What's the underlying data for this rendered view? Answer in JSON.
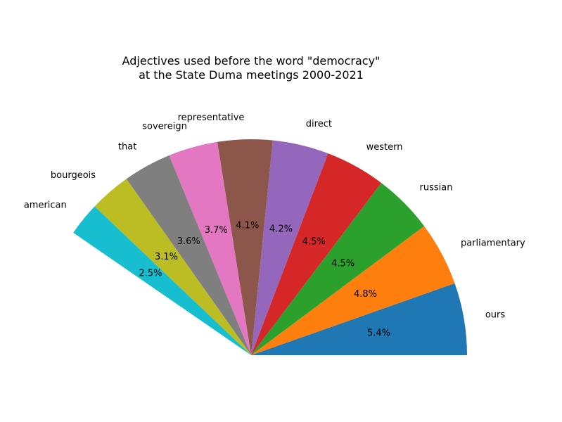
{
  "chart_data": {
    "type": "pie",
    "title": "Adjectives used before the word \"democracy\"\nat the State Duma meetings 2000-2021",
    "title_lines": [
      "Adjectives used before the word \"democracy\"",
      "at the State Duma meetings 2000-2021"
    ],
    "start_angle_deg": 0,
    "direction": "counterclockwise",
    "slices": [
      {
        "label": "ours",
        "value": 5.4,
        "pct_label": "5.4%",
        "color": "#1f77b4"
      },
      {
        "label": "parliamentary",
        "value": 4.8,
        "pct_label": "4.8%",
        "color": "#ff7f0e"
      },
      {
        "label": "russian",
        "value": 4.5,
        "pct_label": "4.5%",
        "color": "#2ca02c"
      },
      {
        "label": "western",
        "value": 4.5,
        "pct_label": "4.5%",
        "color": "#d62728"
      },
      {
        "label": "direct",
        "value": 4.2,
        "pct_label": "4.2%",
        "color": "#9467bd"
      },
      {
        "label": "representative",
        "value": 4.1,
        "pct_label": "4.1%",
        "color": "#8c564b"
      },
      {
        "label": "sovereign",
        "value": 3.7,
        "pct_label": "3.7%",
        "color": "#e377c2"
      },
      {
        "label": "that",
        "value": 3.6,
        "pct_label": "3.6%",
        "color": "#7f7f7f"
      },
      {
        "label": "bourgeois",
        "value": 3.1,
        "pct_label": "3.1%",
        "color": "#bcbd22"
      },
      {
        "label": "american",
        "value": 2.5,
        "pct_label": "2.5%",
        "color": "#17becf"
      }
    ]
  }
}
